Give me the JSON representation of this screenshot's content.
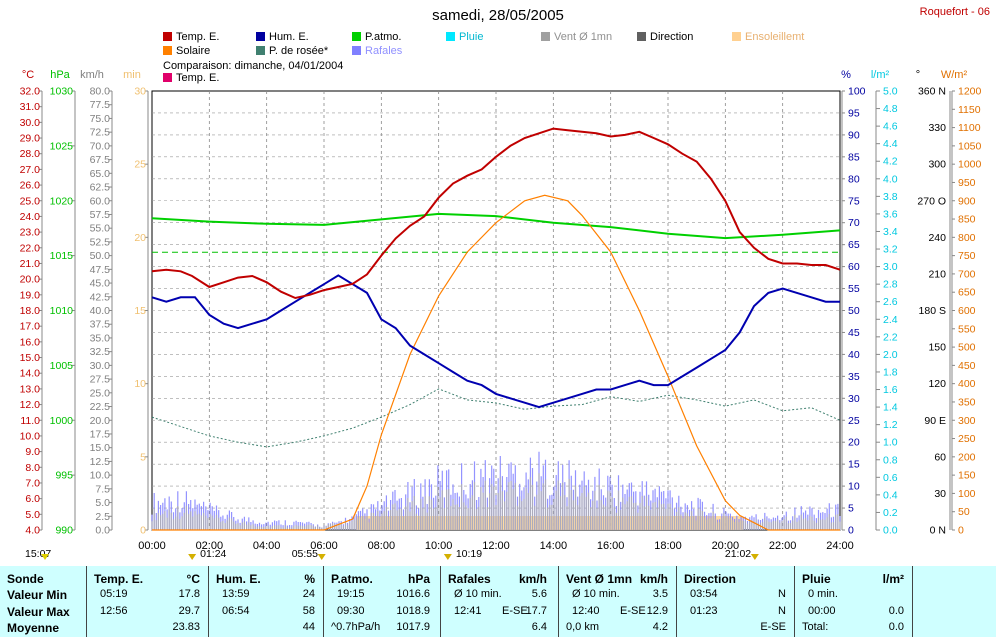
{
  "title": "samedi, 28/05/2005",
  "station": "Roquefort - 06",
  "legend": [
    {
      "label": "Temp. E.",
      "color": "#c00000"
    },
    {
      "label": "Hum. E.",
      "color": "#0000a0"
    },
    {
      "label": "P.atmo.",
      "color": "#00d000"
    },
    {
      "label": "Pluie",
      "color": "#00e8ff"
    },
    {
      "label": "Vent Ø 1mn",
      "color": "#a0a0a0"
    },
    {
      "label": "Direction",
      "color": "#606060"
    },
    {
      "label": "Ensoleillemt",
      "color": "#ffd090"
    },
    {
      "label": "Solaire",
      "color": "#ff8000"
    },
    {
      "label": "P. de rosée*",
      "color": "#408070"
    },
    {
      "label": "Rafales",
      "color": "#8080ff"
    }
  ],
  "comparison": {
    "text": "Comparaison: dimanche, 04/01/2004",
    "label": "Temp. E.",
    "color": "#e0006a"
  },
  "axes": {
    "temp": {
      "unit": "°C",
      "min": 4.0,
      "max": 32.0,
      "step": 1.0,
      "color": "#c00000"
    },
    "press": {
      "unit": "hPa",
      "min": 990,
      "max": 1030,
      "step": 5,
      "color": "#00c000"
    },
    "wind": {
      "unit": "km/h",
      "min": 0.0,
      "max": 80.0,
      "step": 2.5,
      "color": "#808080"
    },
    "sun": {
      "unit": "min",
      "min": 0,
      "max": 30,
      "step": 5,
      "color": "#f0c070"
    },
    "hum": {
      "unit": "%",
      "min": 0,
      "max": 100,
      "step": 5,
      "color": "#0000a0"
    },
    "rain": {
      "unit": "l/m²",
      "min": 0.0,
      "max": 5.0,
      "step": 0.2,
      "color": "#00c8e0"
    },
    "dir": {
      "unit": "°",
      "ticks": [
        "0 N",
        "30",
        "60",
        "90 E",
        "120",
        "150",
        "180 S",
        "210",
        "240",
        "270 O",
        "300",
        "330",
        "360 N"
      ],
      "color": "#000"
    },
    "solar": {
      "unit": "W/m²",
      "min": 0,
      "max": 1200,
      "step": 50,
      "color": "#e07000"
    },
    "x": {
      "labels": [
        "00:00",
        "02:00",
        "04:00",
        "06:00",
        "08:00",
        "10:00",
        "12:00",
        "14:00",
        "16:00",
        "18:00",
        "20:00",
        "22:00",
        "24:00"
      ]
    }
  },
  "markers": {
    "left": "15:07",
    "m1": "01:24",
    "m2": "05:55",
    "m3": "10:19",
    "m4": "21:02"
  },
  "chart_data": {
    "type": "line",
    "x_unit": "hours",
    "series": [
      {
        "name": "Temp. E.",
        "unit": "°C",
        "x": [
          0,
          0.5,
          1,
          1.4,
          2,
          2.5,
          3,
          3.5,
          4,
          4.5,
          5,
          5.5,
          6,
          6.5,
          7,
          7.5,
          8,
          8.5,
          9,
          9.5,
          10,
          10.5,
          11,
          11.5,
          12,
          12.5,
          13,
          13.5,
          14,
          14.5,
          15,
          15.5,
          16,
          16.5,
          17,
          17.5,
          18,
          18.5,
          19,
          19.5,
          20,
          20.5,
          21,
          21.5,
          22,
          22.5,
          23,
          23.5,
          24
        ],
        "y": [
          20.5,
          20.6,
          20.5,
          20.2,
          19.5,
          19.8,
          20.1,
          20.2,
          19.8,
          19.2,
          18.8,
          19.0,
          19.3,
          19.5,
          19.7,
          20.3,
          21.5,
          22.6,
          23.4,
          24.0,
          25.2,
          26.1,
          26.6,
          27.0,
          27.8,
          28.5,
          29.0,
          29.3,
          29.6,
          29.5,
          29.4,
          29.3,
          29.1,
          29.2,
          29.4,
          29.0,
          28.6,
          28.0,
          27.5,
          26.4,
          25.0,
          23.0,
          22.0,
          21.3,
          21.0,
          21.0,
          20.9,
          20.9,
          20.6
        ]
      },
      {
        "name": "Hum. E.",
        "unit": "%",
        "x": [
          0,
          0.5,
          1,
          1.5,
          2,
          2.5,
          3,
          3.5,
          4,
          4.5,
          5,
          5.5,
          6,
          6.5,
          7,
          7.5,
          8,
          8.5,
          9,
          9.5,
          10,
          10.5,
          11,
          11.5,
          12,
          12.5,
          13,
          13.5,
          14,
          14.5,
          15,
          15.5,
          16,
          16.5,
          17,
          17.5,
          18,
          18.5,
          19,
          19.5,
          20,
          20.5,
          21,
          21.5,
          22,
          22.5,
          23,
          23.5,
          24
        ],
        "y": [
          53,
          52,
          53,
          53,
          49,
          47,
          46,
          47,
          48,
          50,
          52,
          54,
          56,
          58,
          56,
          54,
          48,
          46,
          42,
          40,
          38,
          36,
          34,
          33,
          31,
          30,
          29,
          28,
          29,
          30,
          31,
          32,
          32,
          33,
          34,
          33,
          33,
          35,
          37,
          39,
          41,
          45,
          51,
          54,
          55,
          54,
          53,
          52,
          52
        ]
      },
      {
        "name": "P.atmo.",
        "unit": "hPa",
        "x": [
          0,
          2,
          4,
          6,
          8,
          10,
          12,
          14,
          16,
          18,
          20,
          22,
          24
        ],
        "y": [
          1018.4,
          1018.1,
          1017.9,
          1017.8,
          1018.3,
          1018.8,
          1018.6,
          1018.0,
          1017.6,
          1017.0,
          1016.6,
          1016.9,
          1017.3
        ]
      },
      {
        "name": "P.atmo. comparaison",
        "unit": "hPa",
        "x": [
          0,
          24
        ],
        "y": [
          1015.3,
          1015.3
        ]
      },
      {
        "name": "Solaire",
        "unit": "W/m²",
        "x": [
          0,
          6,
          7,
          7.5,
          8,
          9,
          10,
          11,
          12,
          13,
          13.7,
          14.5,
          15,
          16,
          17,
          18,
          19,
          20,
          20.5,
          21,
          21.5,
          24
        ],
        "y": [
          0,
          0,
          30,
          120,
          260,
          480,
          640,
          760,
          840,
          900,
          915,
          900,
          860,
          760,
          600,
          420,
          230,
          80,
          40,
          20,
          0,
          0
        ]
      },
      {
        "name": "P. de rosée*",
        "unit": "°C",
        "x": [
          0,
          1,
          2,
          3,
          4,
          5,
          6,
          7,
          8,
          9,
          10,
          11,
          12,
          13,
          14,
          15,
          16,
          17,
          18,
          19,
          20,
          21,
          22,
          23,
          24
        ],
        "y": [
          11.2,
          10.6,
          10.0,
          9.6,
          9.3,
          9.6,
          10.0,
          10.5,
          11.2,
          12.0,
          13.0,
          12.3,
          12.1,
          11.7,
          11.9,
          12.0,
          12.5,
          12.2,
          12.6,
          12.3,
          11.9,
          12.3,
          11.6,
          11.8,
          11.0
        ]
      },
      {
        "name": "Rafales",
        "unit": "km/h",
        "x": [
          0,
          1,
          2,
          3,
          4,
          5,
          6,
          7,
          8,
          9,
          10,
          11,
          12,
          13,
          14,
          15,
          16,
          17,
          18,
          19,
          20,
          21,
          22,
          23,
          24
        ],
        "y": [
          7,
          8,
          5,
          3,
          2,
          2,
          1,
          3,
          6,
          9,
          12,
          13,
          14,
          15,
          14,
          12,
          11,
          10,
          9,
          6,
          4,
          3,
          4,
          5,
          5
        ]
      },
      {
        "name": "Vent Ø 1mn",
        "unit": "km/h",
        "x": [
          0,
          1,
          2,
          3,
          4,
          5,
          6,
          7,
          8,
          9,
          10,
          11,
          12,
          13,
          14,
          15,
          16,
          17,
          18,
          19,
          20,
          21,
          22,
          23,
          24
        ],
        "y": [
          4,
          5,
          3,
          2,
          1,
          1,
          1,
          2,
          4,
          6,
          8,
          9,
          10,
          11,
          10,
          9,
          8,
          7,
          6,
          4,
          3,
          2,
          3,
          3,
          3
        ]
      }
    ]
  },
  "table": {
    "row_labels": {
      "sonde": "Sonde",
      "min": "Valeur Min",
      "max": "Valeur Max",
      "avg": "Moyenne"
    },
    "columns": [
      {
        "name": "Temp. E.",
        "unit": "°C",
        "min_time": "05:19",
        "min_val": "17.8",
        "max_time": "12:56",
        "max_val": "29.7",
        "avg_left": "",
        "avg_val": "23.83"
      },
      {
        "name": "Hum. E.",
        "unit": "%",
        "min_time": "13:59",
        "min_val": "24",
        "max_time": "06:54",
        "max_val": "58",
        "avg_left": "",
        "avg_val": "44"
      },
      {
        "name": "P.atmo.",
        "unit": "hPa",
        "min_time": "19:15",
        "min_val": "1016.6",
        "max_time": "09:30",
        "max_val": "1018.9",
        "avg_left": "^0.7hPa/h",
        "avg_val": "1017.9"
      },
      {
        "name": "Rafales",
        "unit": "km/h",
        "min_time": "Ø 10 min.",
        "min_val": "5.6",
        "max_time": "12:41",
        "max_mid": "E-SE",
        "max_val": "17.7",
        "avg_left": "",
        "avg_val": "6.4"
      },
      {
        "name": "Vent Ø 1mn",
        "unit": "km/h",
        "min_time": "Ø 10 min.",
        "min_val": "3.5",
        "max_time": "12:40",
        "max_mid": "E-SE",
        "max_val": "12.9",
        "avg_left": "0,0 km",
        "avg_val": "4.2"
      },
      {
        "name": "Direction",
        "unit": "",
        "min_time": "03:54",
        "min_val": "N",
        "max_time": "01:23",
        "max_val": "N",
        "avg_left": "",
        "avg_val": "E-SE"
      },
      {
        "name": "Pluie",
        "unit": "l/m²",
        "min_time": "0 min.",
        "min_val": "",
        "max_time": "00:00",
        "max_val": "0.0",
        "avg_left": "Total:",
        "avg_val": "0.0"
      }
    ]
  }
}
